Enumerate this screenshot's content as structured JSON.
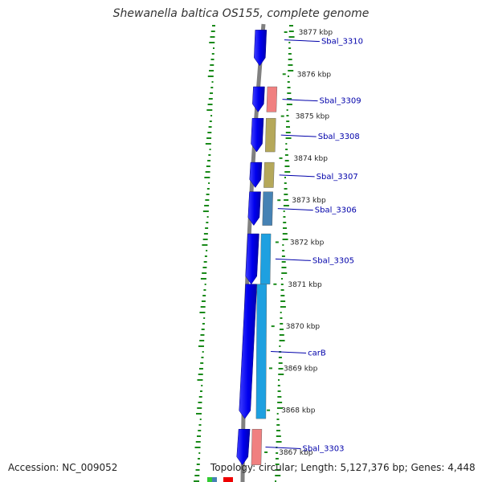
{
  "title": "Shewanella baltica OS155, complete genome",
  "footer": {
    "accession": "Accession: NC_009052",
    "topology": "Topology: circular; Length: 5,127,376 bp; Genes: 4,448"
  },
  "ruler_unit": "kbp",
  "ticks": [
    {
      "label": "3877 kbp",
      "value": 3877
    },
    {
      "label": "3876 kbp",
      "value": 3876
    },
    {
      "label": "3875 kbp",
      "value": 3875
    },
    {
      "label": "3874 kbp",
      "value": 3874
    },
    {
      "label": "3873 kbp",
      "value": 3873
    },
    {
      "label": "3872 kbp",
      "value": 3872
    },
    {
      "label": "3871 kbp",
      "value": 3871
    },
    {
      "label": "3870 kbp",
      "value": 3870
    },
    {
      "label": "3869 kbp",
      "value": 3869
    },
    {
      "label": "3868 kbp",
      "value": 3868
    },
    {
      "label": "3867 kbp",
      "value": 3867
    }
  ],
  "genes": [
    {
      "label": "Sbal_3310",
      "start": 3877.05,
      "end": 3876.2,
      "cog_color": null
    },
    {
      "label": "Sbal_3309",
      "start": 3875.7,
      "end": 3875.1,
      "cog_color": "#f08080"
    },
    {
      "label": "Sbal_3308",
      "start": 3874.95,
      "end": 3874.15,
      "cog_color": "#b5a85a"
    },
    {
      "label": "Sbal_3307",
      "start": 3873.9,
      "end": 3873.3,
      "cog_color": "#b5a85a"
    },
    {
      "label": "Sbal_3306",
      "start": 3873.2,
      "end": 3872.4,
      "cog_color": "#4682b4"
    },
    {
      "label": "Sbal_3305",
      "start": 3872.2,
      "end": 3871.0,
      "cog_color": "#1ea0e0"
    },
    {
      "label": "carB",
      "start": 3871.0,
      "end": 3867.8,
      "cog_color": "#1ea0e0"
    },
    {
      "label": "Sbal_3303",
      "start": 3867.55,
      "end": 3866.7,
      "cog_color": "#f08080"
    }
  ],
  "colors": {
    "cds": "#0a0aee",
    "backbone": "#808080",
    "tick": "#1a8a1a",
    "label": "#0000aa",
    "tick_label": "#222222"
  }
}
